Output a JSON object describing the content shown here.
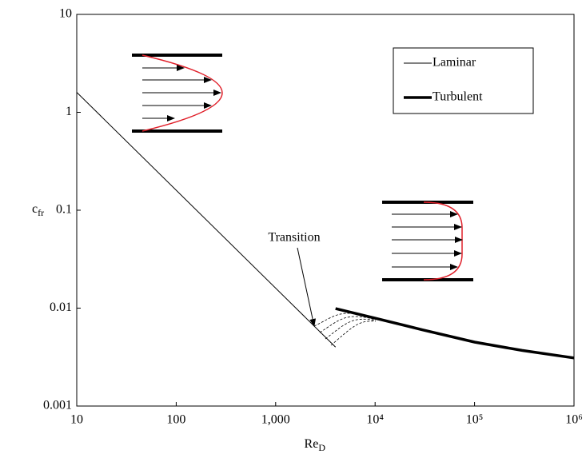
{
  "chart_data": {
    "type": "line",
    "xlabel": {
      "text": "Re",
      "subscript": "D"
    },
    "ylabel": {
      "text": "c",
      "subscript": "fr"
    },
    "log_x": true,
    "log_y": true,
    "xlim": [
      10,
      1000000
    ],
    "ylim": [
      0.001,
      10
    ],
    "xticks": [
      10,
      100,
      {
        "value": 1000,
        "label": "1,000"
      },
      {
        "value": 10000,
        "label": "10⁴"
      },
      {
        "value": 100000,
        "label": "10⁵"
      },
      {
        "value": 1000000,
        "label": "10⁶"
      }
    ],
    "yticks": [
      0.001,
      0.01,
      0.1,
      1,
      10
    ],
    "series": [
      {
        "name": "Laminar",
        "color": "#000000",
        "line_width": 1,
        "x": [
          10,
          4000
        ],
        "values": [
          1.6,
          0.004
        ]
      },
      {
        "name": "Turbulent",
        "color": "#000000",
        "line_width": 3.5,
        "x": [
          4000,
          10000,
          30000,
          100000,
          300000,
          1000000
        ],
        "values": [
          0.0099,
          0.0079,
          0.006,
          0.0045,
          0.0037,
          0.0031
        ]
      }
    ],
    "legend": "upper right",
    "annotations": [
      {
        "text": "Transition"
      }
    ]
  }
}
